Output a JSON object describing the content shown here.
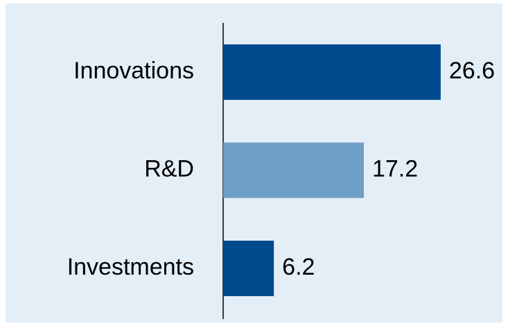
{
  "chart_data": {
    "type": "barh",
    "categories": [
      "Innovations",
      "R&D",
      "Investments"
    ],
    "values": [
      26.6,
      17.2,
      6.2
    ],
    "colors": [
      "#004b8d",
      "#6f9ec6",
      "#004b8d"
    ]
  }
}
